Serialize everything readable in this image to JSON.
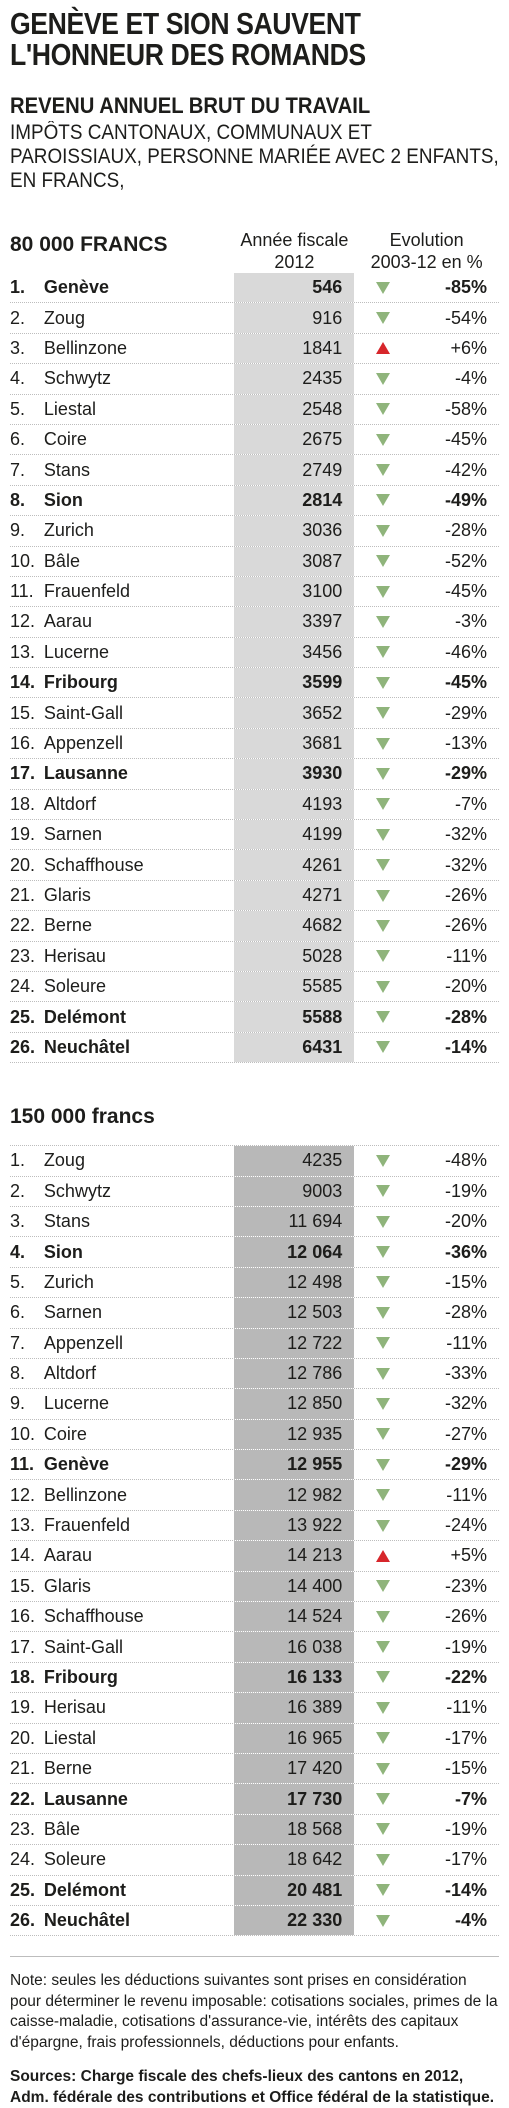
{
  "title": "GENÈVE ET SION SAUVENT L'HONNEUR DES ROMANDS",
  "subtitle_bold": "REVENU ANNUEL BRUT DU TRAVAIL",
  "subtitle": "IMPÔTS CANTONAUX, COMMUNAUX ET PAROISSIAUX, PERSONNE MARIÉE AVEC 2 ENFANTS, EN FRANCS,",
  "column_year": [
    "Année fiscale",
    "2012"
  ],
  "column_evo": [
    "Evolution",
    "2003-12 en %"
  ],
  "chart_data": [
    {
      "type": "table",
      "section": "80 000 FRANCS",
      "rows": [
        {
          "rank": "1.",
          "city": "Genève",
          "value": "546",
          "evolution": "-85%",
          "dir": "down",
          "bold": true
        },
        {
          "rank": "2.",
          "city": "Zoug",
          "value": "916",
          "evolution": "-54%",
          "dir": "down",
          "bold": false
        },
        {
          "rank": "3.",
          "city": "Bellinzone",
          "value": "1841",
          "evolution": "+6%",
          "dir": "up",
          "bold": false
        },
        {
          "rank": "4.",
          "city": "Schwytz",
          "value": "2435",
          "evolution": "-4%",
          "dir": "down",
          "bold": false
        },
        {
          "rank": "5.",
          "city": "Liestal",
          "value": "2548",
          "evolution": "-58%",
          "dir": "down",
          "bold": false
        },
        {
          "rank": "6.",
          "city": "Coire",
          "value": "2675",
          "evolution": "-45%",
          "dir": "down",
          "bold": false
        },
        {
          "rank": "7.",
          "city": "Stans",
          "value": "2749",
          "evolution": "-42%",
          "dir": "down",
          "bold": false
        },
        {
          "rank": "8.",
          "city": "Sion",
          "value": "2814",
          "evolution": "-49%",
          "dir": "down",
          "bold": true
        },
        {
          "rank": "9.",
          "city": "Zurich",
          "value": "3036",
          "evolution": "-28%",
          "dir": "down",
          "bold": false
        },
        {
          "rank": "10.",
          "city": "Bâle",
          "value": "3087",
          "evolution": "-52%",
          "dir": "down",
          "bold": false
        },
        {
          "rank": "11.",
          "city": "Frauenfeld",
          "value": "3100",
          "evolution": "-45%",
          "dir": "down",
          "bold": false
        },
        {
          "rank": "12.",
          "city": "Aarau",
          "value": "3397",
          "evolution": "-3%",
          "dir": "down",
          "bold": false
        },
        {
          "rank": "13.",
          "city": "Lucerne",
          "value": "3456",
          "evolution": "-46%",
          "dir": "down",
          "bold": false
        },
        {
          "rank": "14.",
          "city": "Fribourg",
          "value": "3599",
          "evolution": "-45%",
          "dir": "down",
          "bold": true
        },
        {
          "rank": "15.",
          "city": "Saint-Gall",
          "value": "3652",
          "evolution": "-29%",
          "dir": "down",
          "bold": false
        },
        {
          "rank": "16.",
          "city": "Appenzell",
          "value": "3681",
          "evolution": "-13%",
          "dir": "down",
          "bold": false
        },
        {
          "rank": "17.",
          "city": "Lausanne",
          "value": "3930",
          "evolution": "-29%",
          "dir": "down",
          "bold": true
        },
        {
          "rank": "18.",
          "city": "Altdorf",
          "value": "4193",
          "evolution": "-7%",
          "dir": "down",
          "bold": false
        },
        {
          "rank": "19.",
          "city": "Sarnen",
          "value": "4199",
          "evolution": "-32%",
          "dir": "down",
          "bold": false
        },
        {
          "rank": "20.",
          "city": "Schaffhouse",
          "value": "4261",
          "evolution": "-32%",
          "dir": "down",
          "bold": false
        },
        {
          "rank": "21.",
          "city": "Glaris",
          "value": "4271",
          "evolution": "-26%",
          "dir": "down",
          "bold": false
        },
        {
          "rank": "22.",
          "city": "Berne",
          "value": "4682",
          "evolution": "-26%",
          "dir": "down",
          "bold": false
        },
        {
          "rank": "23.",
          "city": "Herisau",
          "value": "5028",
          "evolution": "-11%",
          "dir": "down",
          "bold": false
        },
        {
          "rank": "24.",
          "city": "Soleure",
          "value": "5585",
          "evolution": "-20%",
          "dir": "down",
          "bold": false
        },
        {
          "rank": "25.",
          "city": "Delémont",
          "value": "5588",
          "evolution": "-28%",
          "dir": "down",
          "bold": true
        },
        {
          "rank": "26.",
          "city": "Neuchâtel",
          "value": "6431",
          "evolution": "-14%",
          "dir": "down",
          "bold": true
        }
      ]
    },
    {
      "type": "table",
      "section": "150 000 francs",
      "rows": [
        {
          "rank": "1.",
          "city": "Zoug",
          "value": "4235",
          "evolution": "-48%",
          "dir": "down",
          "bold": false
        },
        {
          "rank": "2.",
          "city": "Schwytz",
          "value": "9003",
          "evolution": "-19%",
          "dir": "down",
          "bold": false
        },
        {
          "rank": "3.",
          "city": "Stans",
          "value": "11 694",
          "evolution": "-20%",
          "dir": "down",
          "bold": false
        },
        {
          "rank": "4.",
          "city": "Sion",
          "value": "12 064",
          "evolution": "-36%",
          "dir": "down",
          "bold": true
        },
        {
          "rank": "5.",
          "city": "Zurich",
          "value": "12 498",
          "evolution": "-15%",
          "dir": "down",
          "bold": false
        },
        {
          "rank": "6.",
          "city": "Sarnen",
          "value": "12 503",
          "evolution": "-28%",
          "dir": "down",
          "bold": false
        },
        {
          "rank": "7.",
          "city": "Appenzell",
          "value": "12 722",
          "evolution": "-11%",
          "dir": "down",
          "bold": false
        },
        {
          "rank": "8.",
          "city": "Altdorf",
          "value": "12 786",
          "evolution": "-33%",
          "dir": "down",
          "bold": false
        },
        {
          "rank": "9.",
          "city": "Lucerne",
          "value": "12 850",
          "evolution": "-32%",
          "dir": "down",
          "bold": false
        },
        {
          "rank": "10.",
          "city": "Coire",
          "value": "12 935",
          "evolution": "-27%",
          "dir": "down",
          "bold": false
        },
        {
          "rank": "11.",
          "city": "Genève",
          "value": "12 955",
          "evolution": "-29%",
          "dir": "down",
          "bold": true
        },
        {
          "rank": "12.",
          "city": "Bellinzone",
          "value": "12 982",
          "evolution": "-11%",
          "dir": "down",
          "bold": false
        },
        {
          "rank": "13.",
          "city": "Frauenfeld",
          "value": "13 922",
          "evolution": "-24%",
          "dir": "down",
          "bold": false
        },
        {
          "rank": "14.",
          "city": "Aarau",
          "value": "14 213",
          "evolution": "+5%",
          "dir": "up",
          "bold": false
        },
        {
          "rank": "15.",
          "city": "Glaris",
          "value": "14 400",
          "evolution": "-23%",
          "dir": "down",
          "bold": false
        },
        {
          "rank": "16.",
          "city": "Schaffhouse",
          "value": "14 524",
          "evolution": "-26%",
          "dir": "down",
          "bold": false
        },
        {
          "rank": "17.",
          "city": "Saint-Gall",
          "value": "16 038",
          "evolution": "-19%",
          "dir": "down",
          "bold": false
        },
        {
          "rank": "18.",
          "city": "Fribourg",
          "value": "16 133",
          "evolution": "-22%",
          "dir": "down",
          "bold": true
        },
        {
          "rank": "19.",
          "city": "Herisau",
          "value": "16 389",
          "evolution": "-11%",
          "dir": "down",
          "bold": false
        },
        {
          "rank": "20.",
          "city": "Liestal",
          "value": "16 965",
          "evolution": "-17%",
          "dir": "down",
          "bold": false
        },
        {
          "rank": "21.",
          "city": "Berne",
          "value": "17 420",
          "evolution": "-15%",
          "dir": "down",
          "bold": false
        },
        {
          "rank": "22.",
          "city": "Lausanne",
          "value": "17 730",
          "evolution": "-7%",
          "dir": "down",
          "bold": true
        },
        {
          "rank": "23.",
          "city": "Bâle",
          "value": "18 568",
          "evolution": "-19%",
          "dir": "down",
          "bold": false
        },
        {
          "rank": "24.",
          "city": "Soleure",
          "value": "18 642",
          "evolution": "-17%",
          "dir": "down",
          "bold": false
        },
        {
          "rank": "25.",
          "city": "Delémont",
          "value": "20 481",
          "evolution": "-14%",
          "dir": "down",
          "bold": true
        },
        {
          "rank": "26.",
          "city": "Neuchâtel",
          "value": "22 330",
          "evolution": "-4%",
          "dir": "down",
          "bold": true
        }
      ]
    }
  ],
  "note": "Note: seules les déductions suivantes sont prises en considération pour déterminer le revenu imposable: cotisations sociales, primes de la caisse-maladie, cotisations d'assurance-vie, intérêts des capitaux d'épargne, frais professionnels, déductions pour enfants.",
  "source": "Sources: Charge fiscale des chefs-lieux des cantons en 2012, Adm. fédérale des contributions et Office fédéral de la statistique.",
  "colors": {
    "down": "#8fb47b",
    "up": "#d7262b",
    "col1": "#d9d9d9",
    "col2": "#b8b8b8"
  }
}
